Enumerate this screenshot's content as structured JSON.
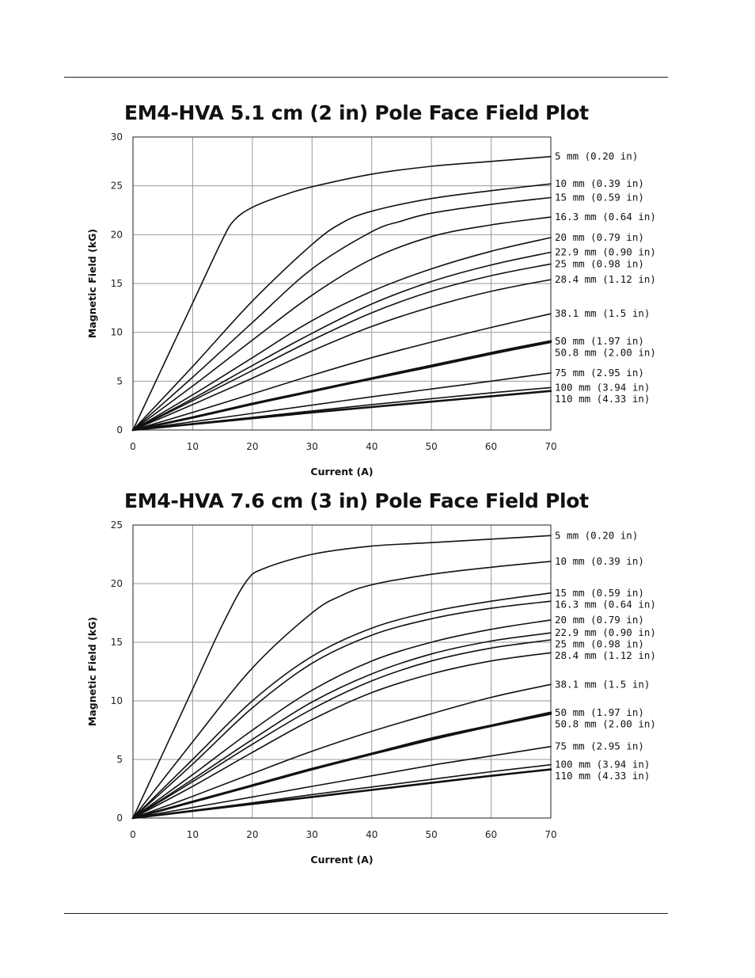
{
  "chart_data": [
    {
      "type": "line",
      "title": "EM4-HVA 5.1 cm (2 in) Pole Face Field Plot",
      "xlabel": "Current (A)",
      "ylabel": "Magnetic Field (kG)",
      "xlim": [
        0,
        70
      ],
      "ylim": [
        0,
        30
      ],
      "xticks": [
        "0",
        "10",
        "20",
        "30",
        "40",
        "50",
        "60",
        "70"
      ],
      "yticks": [
        "0",
        "5",
        "10",
        "15",
        "20",
        "25",
        "30"
      ],
      "grid": true,
      "series": [
        {
          "name": "5 mm (0.20 in)",
          "bold": false,
          "x": [
            0,
            5,
            10,
            15,
            17,
            20,
            25,
            30,
            40,
            50,
            60,
            70
          ],
          "y": [
            0,
            6.5,
            13,
            19.5,
            21.5,
            22.8,
            24,
            24.9,
            26.2,
            27,
            27.5,
            28
          ]
        },
        {
          "name": "10 mm (0.39 in)",
          "bold": false,
          "x": [
            0,
            10,
            20,
            30,
            35,
            40,
            50,
            60,
            70
          ],
          "y": [
            0,
            6.5,
            13.2,
            19,
            21.2,
            22.4,
            23.7,
            24.5,
            25.2
          ]
        },
        {
          "name": "15 mm (0.59 in)",
          "bold": false,
          "x": [
            0,
            10,
            20,
            30,
            40,
            45,
            50,
            60,
            70
          ],
          "y": [
            0,
            5.4,
            11,
            16.5,
            20.3,
            21.4,
            22.2,
            23.1,
            23.8
          ]
        },
        {
          "name": "16.3 mm (0.64 in)",
          "bold": false,
          "x": [
            0,
            10,
            20,
            30,
            40,
            50,
            60,
            70
          ],
          "y": [
            0,
            4.5,
            9.2,
            13.8,
            17.5,
            19.8,
            21,
            21.8
          ]
        },
        {
          "name": "20 mm (0.79 in)",
          "bold": false,
          "x": [
            0,
            10,
            20,
            30,
            40,
            50,
            60,
            70
          ],
          "y": [
            0,
            3.6,
            7.4,
            11.2,
            14.2,
            16.5,
            18.3,
            19.7
          ]
        },
        {
          "name": "22.9 mm (0.90 in)",
          "bold": false,
          "x": [
            0,
            10,
            20,
            30,
            40,
            50,
            60,
            70
          ],
          "y": [
            0,
            3.2,
            6.6,
            9.9,
            12.9,
            15.2,
            16.9,
            18.2
          ]
        },
        {
          "name": "25 mm (0.98 in)",
          "bold": false,
          "x": [
            0,
            10,
            20,
            30,
            40,
            50,
            60,
            70
          ],
          "y": [
            0,
            3.0,
            6.1,
            9.2,
            12,
            14.2,
            15.8,
            17.0
          ]
        },
        {
          "name": "28.4 mm (1.12 in)",
          "bold": false,
          "x": [
            0,
            10,
            20,
            30,
            40,
            50,
            60,
            70
          ],
          "y": [
            0,
            2.6,
            5.3,
            8.1,
            10.6,
            12.6,
            14.2,
            15.4
          ]
        },
        {
          "name": "38.1 mm (1.5 in)",
          "bold": false,
          "x": [
            0,
            10,
            20,
            30,
            40,
            50,
            60,
            70
          ],
          "y": [
            0,
            1.8,
            3.7,
            5.6,
            7.4,
            9.0,
            10.5,
            11.9
          ]
        },
        {
          "name": "50 mm (1.97 in)",
          "bold": true,
          "x": [
            0,
            10,
            20,
            30,
            40,
            50,
            60,
            70
          ],
          "y": [
            0,
            1.3,
            2.7,
            4.0,
            5.3,
            6.6,
            7.9,
            9.1
          ]
        },
        {
          "name": "50.8 mm (2.00 in)",
          "bold": true,
          "x": [
            0,
            10,
            20,
            30,
            40,
            50,
            60,
            70
          ],
          "y": [
            0,
            1.27,
            2.65,
            3.95,
            5.25,
            6.5,
            7.8,
            9.0
          ]
        },
        {
          "name": "75 mm (2.95 in)",
          "bold": false,
          "x": [
            0,
            10,
            20,
            30,
            40,
            50,
            60,
            70
          ],
          "y": [
            0,
            0.85,
            1.7,
            2.55,
            3.4,
            4.2,
            5.0,
            5.85
          ]
        },
        {
          "name": "100 mm (3.94 in)",
          "bold": false,
          "x": [
            0,
            10,
            20,
            30,
            40,
            50,
            60,
            70
          ],
          "y": [
            0,
            0.65,
            1.3,
            1.95,
            2.6,
            3.2,
            3.8,
            4.35
          ]
        },
        {
          "name": "110 mm (4.33 in)",
          "bold": true,
          "x": [
            0,
            10,
            20,
            30,
            40,
            50,
            60,
            70
          ],
          "y": [
            0,
            0.6,
            1.2,
            1.8,
            2.35,
            2.9,
            3.45,
            4.0
          ]
        }
      ]
    },
    {
      "type": "line",
      "title": "EM4-HVA 7.6 cm (3 in) Pole Face Field Plot",
      "xlabel": "Current (A)",
      "ylabel": "Magnetic Field (kG)",
      "xlim": [
        0,
        70
      ],
      "ylim": [
        0,
        25
      ],
      "xticks": [
        "0",
        "10",
        "20",
        "30",
        "40",
        "50",
        "60",
        "70"
      ],
      "yticks": [
        "0",
        "5",
        "10",
        "15",
        "20",
        "25"
      ],
      "grid": true,
      "series": [
        {
          "name": "5 mm (0.20 in)",
          "bold": false,
          "x": [
            0,
            5,
            10,
            15,
            19,
            22,
            30,
            40,
            50,
            60,
            70
          ],
          "y": [
            0,
            5.5,
            11,
            16.5,
            20.2,
            21.3,
            22.5,
            23.2,
            23.5,
            23.8,
            24.1
          ]
        },
        {
          "name": "10 mm (0.39 in)",
          "bold": false,
          "x": [
            0,
            10,
            20,
            30,
            35,
            40,
            50,
            60,
            70
          ],
          "y": [
            0,
            6.5,
            12.8,
            17.5,
            19.0,
            19.9,
            20.8,
            21.4,
            21.9
          ]
        },
        {
          "name": "15 mm (0.59 in)",
          "bold": false,
          "x": [
            0,
            10,
            20,
            30,
            40,
            50,
            60,
            70
          ],
          "y": [
            0,
            5.0,
            10.0,
            13.8,
            16.2,
            17.6,
            18.5,
            19.2
          ]
        },
        {
          "name": "16.3 mm (0.64 in)",
          "bold": false,
          "x": [
            0,
            10,
            20,
            30,
            40,
            50,
            60,
            70
          ],
          "y": [
            0,
            4.6,
            9.4,
            13.2,
            15.6,
            17.0,
            17.9,
            18.5
          ]
        },
        {
          "name": "20 mm (0.79 in)",
          "bold": false,
          "x": [
            0,
            10,
            20,
            30,
            40,
            50,
            60,
            70
          ],
          "y": [
            0,
            3.7,
            7.5,
            10.9,
            13.4,
            15.0,
            16.1,
            16.9
          ]
        },
        {
          "name": "22.9 mm (0.90 in)",
          "bold": false,
          "x": [
            0,
            10,
            20,
            30,
            40,
            50,
            60,
            70
          ],
          "y": [
            0,
            3.3,
            6.7,
            9.9,
            12.3,
            14.0,
            15.1,
            15.8
          ]
        },
        {
          "name": "25 mm (0.98 in)",
          "bold": false,
          "x": [
            0,
            10,
            20,
            30,
            40,
            50,
            60,
            70
          ],
          "y": [
            0,
            3.1,
            6.3,
            9.3,
            11.7,
            13.4,
            14.5,
            15.2
          ]
        },
        {
          "name": "28.4 mm (1.12 in)",
          "bold": false,
          "x": [
            0,
            10,
            20,
            30,
            40,
            50,
            60,
            70
          ],
          "y": [
            0,
            2.7,
            5.6,
            8.4,
            10.7,
            12.3,
            13.4,
            14.1
          ]
        },
        {
          "name": "38.1 mm (1.5 in)",
          "bold": false,
          "x": [
            0,
            10,
            20,
            30,
            40,
            50,
            60,
            70
          ],
          "y": [
            0,
            1.85,
            3.8,
            5.7,
            7.4,
            8.9,
            10.3,
            11.4
          ]
        },
        {
          "name": "50 mm (1.97 in)",
          "bold": true,
          "x": [
            0,
            10,
            20,
            30,
            40,
            50,
            60,
            70
          ],
          "y": [
            0,
            1.4,
            2.8,
            4.2,
            5.5,
            6.8,
            7.9,
            9.0
          ]
        },
        {
          "name": "50.8 mm (2.00 in)",
          "bold": true,
          "x": [
            0,
            10,
            20,
            30,
            40,
            50,
            60,
            70
          ],
          "y": [
            0,
            1.37,
            2.75,
            4.15,
            5.45,
            6.7,
            7.85,
            8.9
          ]
        },
        {
          "name": "75 mm (2.95 in)",
          "bold": false,
          "x": [
            0,
            10,
            20,
            30,
            40,
            50,
            60,
            70
          ],
          "y": [
            0,
            0.9,
            1.8,
            2.7,
            3.6,
            4.5,
            5.3,
            6.1
          ]
        },
        {
          "name": "100 mm (3.94 in)",
          "bold": false,
          "x": [
            0,
            10,
            20,
            30,
            40,
            50,
            60,
            70
          ],
          "y": [
            0,
            0.65,
            1.3,
            2.0,
            2.65,
            3.3,
            3.95,
            4.55
          ]
        },
        {
          "name": "110 mm (4.33 in)",
          "bold": true,
          "x": [
            0,
            10,
            20,
            30,
            40,
            50,
            60,
            70
          ],
          "y": [
            0,
            0.6,
            1.2,
            1.8,
            2.4,
            3.0,
            3.6,
            4.15
          ]
        }
      ]
    }
  ]
}
